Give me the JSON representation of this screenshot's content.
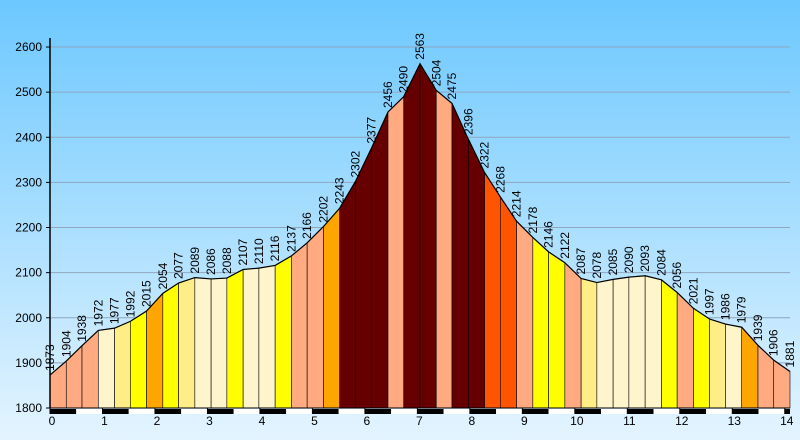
{
  "chart_data": {
    "type": "line",
    "x": [
      0,
      0.31,
      0.61,
      0.92,
      1.23,
      1.53,
      1.84,
      2.15,
      2.45,
      2.76,
      3.07,
      3.37,
      3.68,
      3.98,
      4.29,
      4.6,
      4.9,
      5.21,
      5.52,
      5.82,
      6.13,
      6.44,
      6.74,
      7.05,
      7.36,
      7.66,
      7.97,
      8.28,
      8.58,
      8.89,
      9.2,
      9.5,
      9.81,
      10.12,
      10.42,
      10.73,
      11.03,
      11.34,
      11.65,
      11.95,
      12.26,
      12.57,
      12.87,
      13.18,
      13.49,
      13.79,
      14.1
    ],
    "values": [
      1873,
      1904,
      1938,
      1972,
      1977,
      1992,
      2015,
      2054,
      2077,
      2089,
      2086,
      2088,
      2107,
      2110,
      2116,
      2137,
      2166,
      2202,
      2243,
      2302,
      2377,
      2456,
      2490,
      2563,
      2504,
      2475,
      2396,
      2322,
      2268,
      2214,
      2178,
      2146,
      2122,
      2087,
      2078,
      2085,
      2090,
      2093,
      2084,
      2056,
      2021,
      1997,
      1986,
      1979,
      1939,
      1906,
      1881
    ],
    "segment_colors": [
      "#ffaa80",
      "#ffaa80",
      "#ffaa80",
      "#fff5cc",
      "#ffee88",
      "#ffff00",
      "#ffa500",
      "#ffff00",
      "#ffee88",
      "#fff5cc",
      "#fff5cc",
      "#ffff00",
      "#fff5cc",
      "#fff5cc",
      "#ffff00",
      "#ffaa80",
      "#ffaa80",
      "#ffa500",
      "#660000",
      "#660000",
      "#660000",
      "#ffaa80",
      "#660000",
      "#660000",
      "#ffaa80",
      "#660000",
      "#660000",
      "#ff5500",
      "#ff5500",
      "#ffaa80",
      "#ffff00",
      "#ffff00",
      "#ffaa80",
      "#ffee88",
      "#fff5cc",
      "#fff5cc",
      "#fff5cc",
      "#fff5cc",
      "#ffff00",
      "#ffaa80",
      "#ffff00",
      "#ffee88",
      "#fff5cc",
      "#ffa500",
      "#ffaa80",
      "#ffaa80"
    ],
    "xlim": [
      0,
      14.1
    ],
    "xticks": [
      0,
      1,
      2,
      3,
      4,
      5,
      6,
      7,
      8,
      9,
      10,
      11,
      12,
      13,
      14
    ],
    "ylim": [
      1800,
      2620
    ],
    "yticks": [
      1800,
      1900,
      2000,
      2100,
      2200,
      2300,
      2400,
      2500,
      2600
    ],
    "grid": true
  }
}
